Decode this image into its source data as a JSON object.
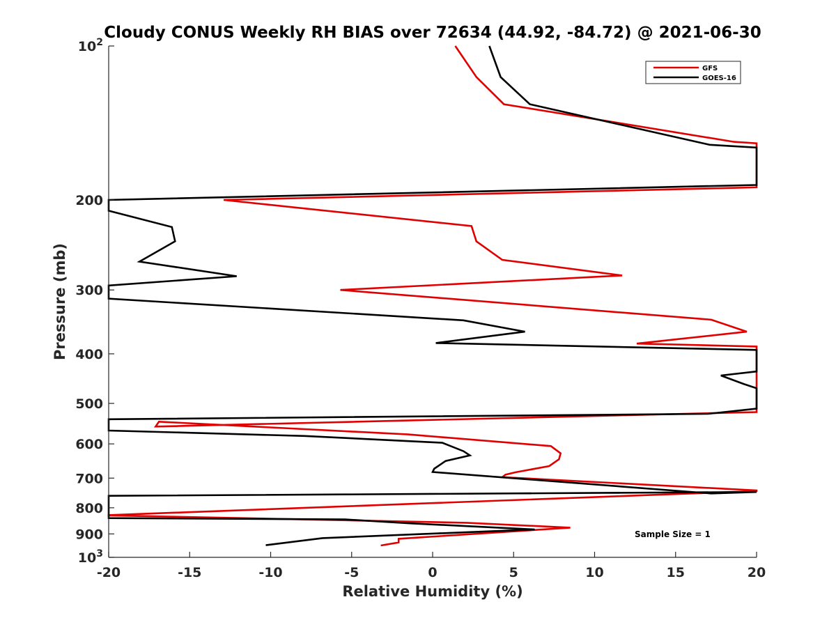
{
  "chart_data": {
    "type": "line",
    "title": "Cloudy CONUS Weekly RH BIAS over 72634 (44.92, -84.72) @ 2021-06-30",
    "xlabel": "Relative Humidity (%)",
    "ylabel": "Pressure (mb)",
    "xlim": [
      -20,
      20
    ],
    "ylim": [
      100,
      1000
    ],
    "y_scale": "log",
    "y_reversed": true,
    "x_ticks": [
      "-20",
      "-15",
      "-10",
      "-5",
      "0",
      "5",
      "10",
      "15",
      "20"
    ],
    "y_ticks": [
      {
        "value": 100,
        "base": "10",
        "exp": "2"
      },
      {
        "value": 200,
        "label": "200"
      },
      {
        "value": 300,
        "label": "300"
      },
      {
        "value": 400,
        "label": "400"
      },
      {
        "value": 500,
        "label": "500"
      },
      {
        "value": 600,
        "label": "600"
      },
      {
        "value": 700,
        "label": "700"
      },
      {
        "value": 800,
        "label": "800"
      },
      {
        "value": 900,
        "label": "900"
      },
      {
        "value": 1000,
        "base": "10",
        "exp": "3"
      }
    ],
    "grid": false,
    "legend_position": "top-right",
    "annotation": "Sample Size = 1",
    "series": [
      {
        "name": "GFS",
        "color": "#e00000",
        "points": [
          [
            1.4,
            100
          ],
          [
            2.7,
            115
          ],
          [
            4.4,
            130
          ],
          [
            18.6,
            154
          ],
          [
            20,
            155
          ],
          [
            20,
            189
          ],
          [
            -12.9,
            200
          ],
          [
            2.4,
            225
          ],
          [
            2.7,
            241
          ],
          [
            4.3,
            262
          ],
          [
            11.7,
            281
          ],
          [
            -5.7,
            300
          ],
          [
            17.2,
            343
          ],
          [
            19.4,
            362
          ],
          [
            12.6,
            382
          ],
          [
            20,
            387
          ],
          [
            20,
            520
          ],
          [
            -17.1,
            555
          ],
          [
            -16.9,
            543
          ],
          [
            -1.5,
            575
          ],
          [
            7.3,
            606
          ],
          [
            7.9,
            626
          ],
          [
            7.8,
            643
          ],
          [
            7.2,
            663
          ],
          [
            5.1,
            682
          ],
          [
            4.5,
            689
          ],
          [
            4.3,
            697
          ],
          [
            20,
            740
          ],
          [
            20,
            742
          ],
          [
            -20,
            827
          ],
          [
            -20,
            828
          ],
          [
            2.1,
            856
          ],
          [
            8.5,
            875
          ],
          [
            -2.1,
            920
          ],
          [
            -2.1,
            935
          ],
          [
            -3.2,
            948
          ]
        ]
      },
      {
        "name": "GOES-16",
        "color": "#000000",
        "points": [
          [
            3.5,
            100
          ],
          [
            4.2,
            115
          ],
          [
            6.0,
            130
          ],
          [
            17.1,
            156
          ],
          [
            20,
            158
          ],
          [
            20,
            187
          ],
          [
            -20,
            200
          ],
          [
            -20,
            210
          ],
          [
            -16.1,
            226
          ],
          [
            -15.9,
            241
          ],
          [
            -18.1,
            264
          ],
          [
            -12.1,
            282
          ],
          [
            -20,
            294
          ],
          [
            -20,
            312
          ],
          [
            1.9,
            344
          ],
          [
            5.7,
            362
          ],
          [
            0.2,
            381
          ],
          [
            20,
            393
          ],
          [
            20,
            433
          ],
          [
            17.8,
            441
          ],
          [
            19.2,
            458
          ],
          [
            20,
            467
          ],
          [
            20,
            512
          ],
          [
            17.0,
            524
          ],
          [
            -20,
            537
          ],
          [
            -20,
            565
          ],
          [
            -7.9,
            579
          ],
          [
            0.6,
            597
          ],
          [
            1.9,
            620
          ],
          [
            2.3,
            632
          ],
          [
            0.8,
            648
          ],
          [
            0.1,
            671
          ],
          [
            0.0,
            681
          ],
          [
            17.2,
            750
          ],
          [
            20,
            745
          ],
          [
            -20,
            758
          ],
          [
            -20,
            838
          ],
          [
            -5.4,
            843
          ],
          [
            -1.4,
            858
          ],
          [
            6.3,
            882
          ],
          [
            -6.8,
            917
          ],
          [
            -10.3,
            947
          ]
        ]
      }
    ]
  }
}
